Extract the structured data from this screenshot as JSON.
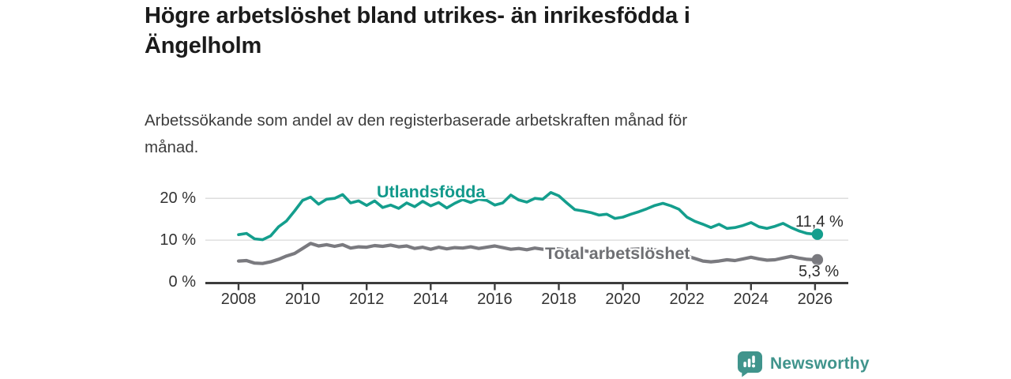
{
  "branding": {
    "logo_text": "Newsworthy",
    "logo_icon": "bar-chart-speech-bubble",
    "logo_color": "#40948c"
  },
  "colors": {
    "foreign_born_line": "#149e8d",
    "foreign_born_label": "#12998b",
    "total_line": "#7a7a7f",
    "total_label": "#6e6f73",
    "gridline": "#dadada",
    "axis": "#3c3c3c",
    "tick_text": "#333333"
  },
  "chart_data": {
    "type": "line",
    "title": "Högre arbetslöshet bland utrikes- än inrikesfödda i\nÄngelholm",
    "subtitle": "Arbetssökande som andel av den registerbaserade arbetskraften månad för\nmånad.",
    "xlabel": "",
    "ylabel": "",
    "ylim": [
      0,
      23
    ],
    "xlim": [
      2007,
      2027
    ],
    "grid": "horizontal",
    "legend_position": "inline-labels",
    "x_ticks": [
      2008,
      2010,
      2012,
      2014,
      2016,
      2018,
      2020,
      2022,
      2024,
      2026
    ],
    "y_ticks": [
      {
        "label": "0 %",
        "value": 0
      },
      {
        "label": "10 %",
        "value": 10
      },
      {
        "label": "20 %",
        "value": 20
      }
    ],
    "x": [
      2008,
      2008.25,
      2008.5,
      2008.75,
      2009,
      2009.25,
      2009.5,
      2009.75,
      2010,
      2010.25,
      2010.5,
      2010.75,
      2011,
      2011.25,
      2011.5,
      2011.75,
      2012,
      2012.25,
      2012.5,
      2012.75,
      2013,
      2013.25,
      2013.5,
      2013.75,
      2014,
      2014.25,
      2014.5,
      2014.75,
      2015,
      2015.25,
      2015.5,
      2015.75,
      2016,
      2016.25,
      2016.5,
      2016.75,
      2017,
      2017.25,
      2017.5,
      2017.75,
      2018,
      2018.25,
      2018.5,
      2018.75,
      2019,
      2019.25,
      2019.5,
      2019.75,
      2020,
      2020.25,
      2020.5,
      2020.75,
      2021,
      2021.25,
      2021.5,
      2021.75,
      2022,
      2022.25,
      2022.5,
      2022.75,
      2023,
      2023.25,
      2023.5,
      2023.75,
      2024,
      2024.25,
      2024.5,
      2024.75,
      2025,
      2025.25,
      2025.5,
      2025.75,
      2026
    ],
    "series": [
      {
        "name": "Utlandsfödda",
        "color": "#149e8d",
        "end_value_label": "11,4 %",
        "end_value": 11.4,
        "values": [
          11.3,
          11.6,
          10.3,
          10.1,
          11.0,
          13.2,
          14.6,
          17.0,
          19.5,
          20.3,
          18.6,
          19.8,
          20.0,
          20.9,
          18.9,
          19.4,
          18.3,
          19.4,
          17.8,
          18.4,
          17.6,
          18.9,
          18.0,
          19.3,
          18.2,
          19.0,
          17.7,
          18.8,
          19.7,
          19.0,
          19.8,
          19.5,
          18.4,
          18.9,
          20.8,
          19.6,
          19.1,
          20.0,
          19.8,
          21.4,
          20.6,
          18.9,
          17.3,
          17.0,
          16.6,
          16.0,
          16.2,
          15.2,
          15.5,
          16.2,
          16.8,
          17.5,
          18.3,
          18.8,
          18.2,
          17.4,
          15.5,
          14.5,
          13.8,
          13.0,
          13.8,
          12.8,
          13.0,
          13.5,
          14.2,
          13.2,
          12.8,
          13.3,
          14.0,
          13.0,
          12.2,
          11.6,
          11.4
        ]
      },
      {
        "name": "Total arbetslöshet",
        "color": "#7a7a7f",
        "end_value_label": "5,3 %",
        "end_value": 5.3,
        "values": [
          5.0,
          5.1,
          4.5,
          4.4,
          4.8,
          5.4,
          6.2,
          6.8,
          8.0,
          9.2,
          8.6,
          8.9,
          8.5,
          8.9,
          8.1,
          8.4,
          8.3,
          8.7,
          8.5,
          8.8,
          8.4,
          8.6,
          8.0,
          8.3,
          7.8,
          8.3,
          7.9,
          8.2,
          8.1,
          8.4,
          8.0,
          8.3,
          8.6,
          8.2,
          7.8,
          8.0,
          7.7,
          8.1,
          7.8,
          8.0,
          7.9,
          7.6,
          7.3,
          7.5,
          7.2,
          7.0,
          7.1,
          6.9,
          7.1,
          7.8,
          7.9,
          7.6,
          7.7,
          7.4,
          7.0,
          6.6,
          6.2,
          5.6,
          5.0,
          4.8,
          5.0,
          5.3,
          5.1,
          5.5,
          5.9,
          5.5,
          5.2,
          5.3,
          5.7,
          6.1,
          5.7,
          5.4,
          5.3
        ]
      }
    ]
  }
}
